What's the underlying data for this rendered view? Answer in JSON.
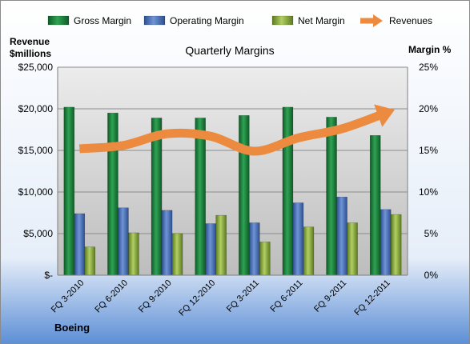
{
  "chart_data": {
    "type": "bar",
    "title": "Quarterly Margins",
    "corner_label": "Boeing",
    "categories": [
      "FQ 3-2010",
      "FQ 6-2010",
      "FQ 9-2010",
      "FQ 12-2010",
      "FQ 3-2011",
      "FQ 6-2011",
      "FQ 9-2011",
      "FQ 12-2011"
    ],
    "series": [
      {
        "name": "Gross Margin",
        "axis": "right",
        "color": "#1f7a3a",
        "values": [
          20.2,
          19.5,
          18.9,
          18.9,
          19.2,
          20.2,
          19.0,
          16.8
        ]
      },
      {
        "name": "Operating Margin",
        "axis": "right",
        "color": "#4a6fb5",
        "values": [
          7.4,
          8.1,
          7.8,
          6.2,
          6.3,
          8.7,
          9.4,
          7.9
        ]
      },
      {
        "name": "Net Margin",
        "axis": "right",
        "color": "#8fb042",
        "values": [
          3.4,
          5.1,
          5.0,
          7.2,
          4.0,
          5.8,
          6.3,
          7.3
        ]
      }
    ],
    "trend": {
      "name": "Revenues",
      "axis": "left",
      "color": "#ec8b3f",
      "values": [
        15200,
        15600,
        17000,
        16700,
        14900,
        16500,
        17600,
        19500
      ]
    },
    "left_axis": {
      "label_line1": "Revenue",
      "label_line2": "$millions",
      "min": 0,
      "max": 25000,
      "ticks": [
        "$-",
        "$5,000",
        "$10,000",
        "$15,000",
        "$20,000",
        "$25,000"
      ]
    },
    "right_axis": {
      "label": "Margin %",
      "min": 0,
      "max": 25,
      "ticks": [
        "0%",
        "5%",
        "10%",
        "15%",
        "20%",
        "25%"
      ]
    },
    "grid": true,
    "legend_position": "top"
  }
}
